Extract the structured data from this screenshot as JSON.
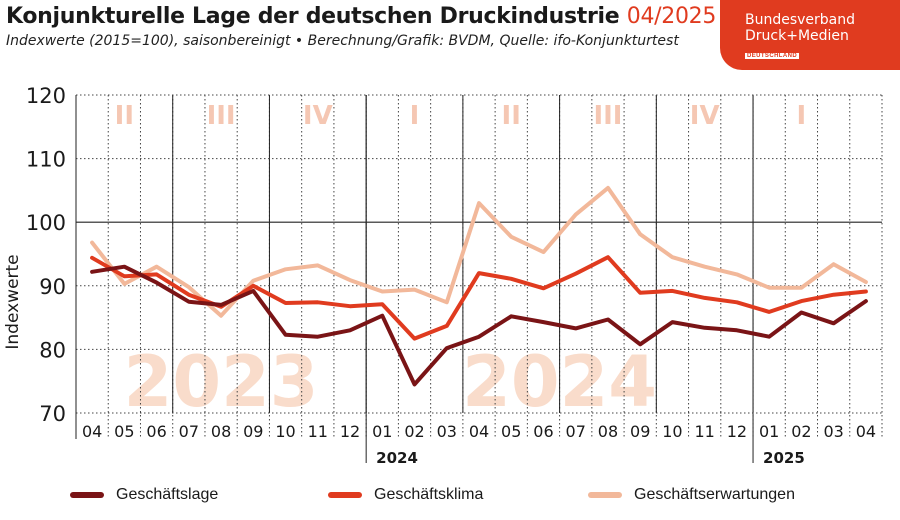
{
  "header": {
    "title": "Konjunkturelle Lage der deutschen Druckindustrie",
    "period": "04/2025",
    "subtitle": "Indexwerte (2015=100), saisonbereinigt • Berechnung/Grafik: BVDM, Quelle: ifo-Konjunkturtest"
  },
  "logo": {
    "line1": "Bundesverband",
    "line2": "Druck+Medien",
    "line3": "DEUTSCHLAND"
  },
  "colors": {
    "geschaeftslage": "#7a1416",
    "geschaeftsklima": "#e03b1f",
    "geschaeftserwartungen": "#f2b89a",
    "watermark": "#f9dccb",
    "quarter": "#f5c7b3"
  },
  "chart_data": {
    "type": "line",
    "title": "Konjunkturelle Lage der deutschen Druckindustrie 04/2025",
    "ylabel": "Indexwerte",
    "ylim": [
      70,
      120
    ],
    "yticks": [
      70,
      80,
      90,
      100,
      110,
      120
    ],
    "grid": true,
    "legend_position": "bottom",
    "x": [
      "04",
      "05",
      "06",
      "07",
      "08",
      "09",
      "10",
      "11",
      "12",
      "01",
      "02",
      "03",
      "04",
      "05",
      "06",
      "07",
      "08",
      "09",
      "10",
      "11",
      "12",
      "01",
      "02",
      "03",
      "04"
    ],
    "year_labels": [
      {
        "label": "2024",
        "at": 9
      },
      {
        "label": "2025",
        "at": 21
      }
    ],
    "quarter_labels": [
      {
        "label": "II",
        "from": 0,
        "to": 2
      },
      {
        "label": "III",
        "from": 3,
        "to": 5
      },
      {
        "label": "IV",
        "from": 6,
        "to": 8
      },
      {
        "label": "I",
        "from": 9,
        "to": 11
      },
      {
        "label": "II",
        "from": 12,
        "to": 14
      },
      {
        "label": "III",
        "from": 15,
        "to": 17
      },
      {
        "label": "IV",
        "from": 18,
        "to": 20
      },
      {
        "label": "I",
        "from": 21,
        "to": 23
      }
    ],
    "watermarks": [
      {
        "label": "2023",
        "from": 0,
        "to": 8
      },
      {
        "label": "2024",
        "from": 9,
        "to": 20
      }
    ],
    "series": [
      {
        "name": "Geschäftslage",
        "color_key": "geschaeftslage",
        "values": [
          92.2,
          93.0,
          90.5,
          87.5,
          87.0,
          89.2,
          82.3,
          82.0,
          83.0,
          85.3,
          74.5,
          80.2,
          82.0,
          85.2,
          84.3,
          83.3,
          84.7,
          80.8,
          84.3,
          83.4,
          83.0,
          82.0,
          85.8,
          84.1,
          87.6
        ]
      },
      {
        "name": "Geschäftsklima",
        "color_key": "geschaeftsklima",
        "values": [
          94.4,
          91.5,
          91.8,
          88.6,
          86.7,
          90.0,
          87.3,
          87.4,
          86.8,
          87.1,
          81.7,
          83.7,
          92.0,
          91.1,
          89.6,
          91.9,
          94.5,
          88.9,
          89.2,
          88.1,
          87.4,
          85.9,
          87.6,
          88.6,
          89.1
        ]
      },
      {
        "name": "Geschäftserwartungen",
        "color_key": "geschaeftserwartungen",
        "values": [
          96.8,
          90.3,
          93.0,
          89.8,
          85.3,
          90.8,
          92.6,
          93.2,
          90.9,
          89.1,
          89.4,
          87.4,
          103.0,
          97.7,
          95.3,
          101.2,
          105.4,
          98.1,
          94.5,
          93.0,
          91.8,
          89.7,
          89.7,
          93.4,
          90.6
        ]
      }
    ]
  }
}
